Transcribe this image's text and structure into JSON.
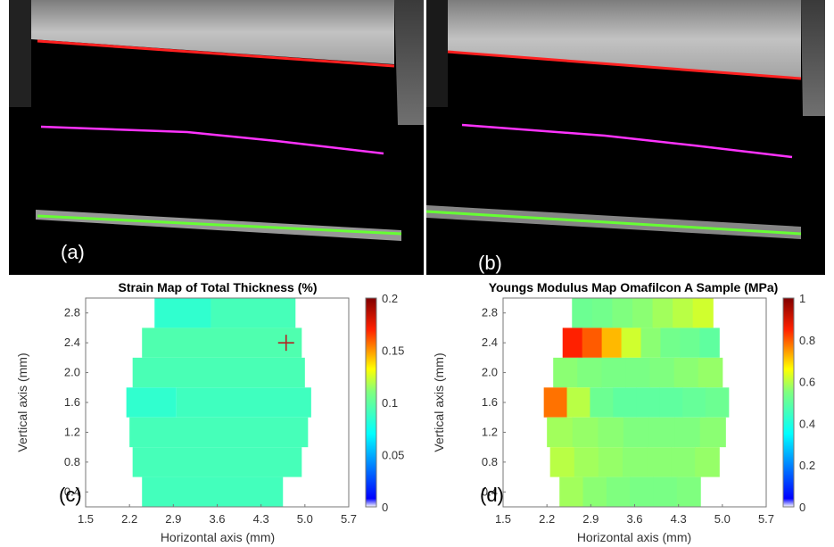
{
  "panels": {
    "a": "(a)",
    "b": "(b)",
    "c": "(c)",
    "d": "(d)"
  },
  "chart_data": [
    {
      "type": "heatmap",
      "title": "Strain Map of Total Thickness (%)",
      "xlabel": "Horizontal axis (mm)",
      "ylabel": "Vertical axis (mm)",
      "xticks": [
        "1.5",
        "2.2",
        "2.9",
        "3.6",
        "4.3",
        "5.0",
        "5.7"
      ],
      "yticks": [
        "0.4",
        "0.8",
        "1.2",
        "1.6",
        "2.0",
        "2.4",
        "2.8"
      ],
      "xlim": [
        1.5,
        5.7
      ],
      "ylim": [
        0.2,
        3.0
      ],
      "colorbar": {
        "min": 0,
        "max": 0.2,
        "ticks": [
          "0",
          "0.05",
          "0.1",
          "0.15",
          "0.2"
        ]
      },
      "marker": {
        "x": 4.7,
        "y": 2.4,
        "symbol": "+",
        "color": "#b22222"
      },
      "rows": [
        {
          "y0": 2.6,
          "y1": 3.0,
          "segments": [
            {
              "x0": 2.6,
              "x1": 3.5,
              "v": 0.085
            },
            {
              "x0": 3.5,
              "x1": 4.85,
              "v": 0.092
            }
          ]
        },
        {
          "y0": 2.2,
          "y1": 2.6,
          "segments": [
            {
              "x0": 2.4,
              "x1": 4.95,
              "v": 0.095
            }
          ]
        },
        {
          "y0": 1.8,
          "y1": 2.2,
          "segments": [
            {
              "x0": 2.25,
              "x1": 5.0,
              "v": 0.093
            }
          ]
        },
        {
          "y0": 1.4,
          "y1": 1.8,
          "segments": [
            {
              "x0": 2.15,
              "x1": 2.95,
              "v": 0.085
            },
            {
              "x0": 2.95,
              "x1": 5.1,
              "v": 0.09
            }
          ]
        },
        {
          "y0": 1.0,
          "y1": 1.4,
          "segments": [
            {
              "x0": 2.2,
              "x1": 5.05,
              "v": 0.092
            }
          ]
        },
        {
          "y0": 0.6,
          "y1": 1.0,
          "segments": [
            {
              "x0": 2.25,
              "x1": 4.95,
              "v": 0.092
            }
          ]
        },
        {
          "y0": 0.2,
          "y1": 0.6,
          "segments": [
            {
              "x0": 2.4,
              "x1": 4.65,
              "v": 0.091
            }
          ]
        }
      ]
    },
    {
      "type": "heatmap",
      "title": "Youngs Modulus Map Omafilcon A Sample (MPa)",
      "xlabel": "Horizontal axis (mm)",
      "ylabel": "Vertical axis (mm)",
      "xticks": [
        "1.5",
        "2.2",
        "2.9",
        "3.6",
        "4.3",
        "5.0",
        "5.7"
      ],
      "yticks": [
        "0.4",
        "0.8",
        "1.2",
        "1.6",
        "2.0",
        "2.4",
        "2.8"
      ],
      "xlim": [
        1.5,
        5.7
      ],
      "ylim": [
        0.2,
        3.0
      ],
      "colorbar": {
        "min": 0,
        "max": 1,
        "ticks": [
          "0",
          "0.2",
          "0.4",
          "0.6",
          "0.8",
          "1"
        ]
      },
      "rows": [
        {
          "y0": 2.6,
          "y1": 3.0,
          "x0": 2.6,
          "x1": 4.85,
          "values": [
            0.52,
            0.53,
            0.55,
            0.56,
            0.58,
            0.6,
            0.62
          ]
        },
        {
          "y0": 2.2,
          "y1": 2.6,
          "x0": 2.45,
          "x1": 4.95,
          "values": [
            0.85,
            0.8,
            0.72,
            0.62,
            0.56,
            0.53,
            0.52,
            0.5
          ]
        },
        {
          "y0": 1.8,
          "y1": 2.2,
          "x0": 2.3,
          "x1": 5.0,
          "values": [
            0.56,
            0.55,
            0.54,
            0.54,
            0.55,
            0.56,
            0.57
          ]
        },
        {
          "y0": 1.4,
          "y1": 1.8,
          "x0": 2.15,
          "x1": 5.1,
          "values": [
            0.78,
            0.6,
            0.52,
            0.5,
            0.5,
            0.5,
            0.51,
            0.52
          ]
        },
        {
          "y0": 1.0,
          "y1": 1.4,
          "x0": 2.2,
          "x1": 5.05,
          "values": [
            0.58,
            0.57,
            0.56,
            0.55,
            0.55,
            0.55,
            0.56
          ]
        },
        {
          "y0": 0.6,
          "y1": 1.0,
          "x0": 2.25,
          "x1": 4.95,
          "values": [
            0.6,
            0.58,
            0.57,
            0.56,
            0.56,
            0.56,
            0.57
          ]
        },
        {
          "y0": 0.2,
          "y1": 0.6,
          "x0": 2.4,
          "x1": 4.65,
          "values": [
            0.58,
            0.56,
            0.55,
            0.54,
            0.54,
            0.55
          ]
        }
      ]
    }
  ]
}
